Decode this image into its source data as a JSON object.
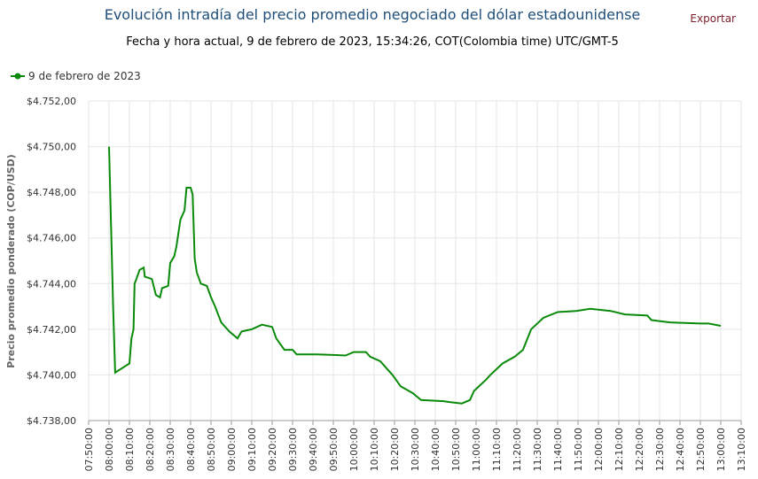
{
  "chart_data": {
    "type": "line",
    "title": "Evolución intradía del precio promedio negociado del dólar estadounidense",
    "subtitle": "Fecha y hora actual, 9 de febrero de 2023, 15:34:26, COT(Colombia time) UTC/GMT-5",
    "export_label": "Exportar",
    "y_label": "Precio promedio ponderado (COP/USD)",
    "ylim": [
      4738,
      4752
    ],
    "yticks": [
      {
        "value": 4738,
        "label": "$4.738,00"
      },
      {
        "value": 4740,
        "label": "$4.740,00"
      },
      {
        "value": 4742,
        "label": "$4.742,00"
      },
      {
        "value": 4744,
        "label": "$4.744,00"
      },
      {
        "value": 4746,
        "label": "$4.746,00"
      },
      {
        "value": 4748,
        "label": "$4.748,00"
      },
      {
        "value": 4750,
        "label": "$4.750,00"
      },
      {
        "value": 4752,
        "label": "$4.752,00"
      }
    ],
    "xlim": [
      "07:50:00",
      "13:10:00"
    ],
    "xticks": [
      "07:50:00",
      "08:00:00",
      "08:10:00",
      "08:20:00",
      "08:30:00",
      "08:40:00",
      "08:50:00",
      "09:00:00",
      "09:10:00",
      "09:20:00",
      "09:30:00",
      "09:40:00",
      "09:50:00",
      "10:00:00",
      "10:10:00",
      "10:20:00",
      "10:30:00",
      "10:40:00",
      "10:50:00",
      "11:00:00",
      "11:10:00",
      "11:20:00",
      "11:30:00",
      "11:40:00",
      "11:50:00",
      "12:00:00",
      "12:10:00",
      "12:20:00",
      "12:30:00",
      "12:40:00",
      "12:50:00",
      "13:00:00",
      "13:10:00"
    ],
    "grid": true,
    "legend": "top-left",
    "x": [
      "08:00:00",
      "08:02:00",
      "08:03:00",
      "08:10:00",
      "08:11:00",
      "08:12:00",
      "08:12:30",
      "08:13:00",
      "08:15:00",
      "08:17:00",
      "08:17:30",
      "08:21:00",
      "08:23:00",
      "08:25:00",
      "08:26:00",
      "08:29:00",
      "08:30:00",
      "08:32:00",
      "08:33:00",
      "08:35:00",
      "08:37:00",
      "08:38:00",
      "08:40:00",
      "08:41:00",
      "08:42:00",
      "08:43:00",
      "08:45:00",
      "08:48:00",
      "08:50:00",
      "08:52:00",
      "08:55:00",
      "08:59:00",
      "09:03:00",
      "09:05:00",
      "09:10:00",
      "09:15:00",
      "09:20:00",
      "09:22:00",
      "09:26:00",
      "09:30:00",
      "09:32:00",
      "09:42:00",
      "09:56:00",
      "10:00:00",
      "10:06:00",
      "10:08:00",
      "10:13:00",
      "10:17:00",
      "10:19:00",
      "10:23:00",
      "10:29:00",
      "10:33:00",
      "10:44:00",
      "10:48:00",
      "10:53:00",
      "10:57:00",
      "10:59:00",
      "11:05:00",
      "11:07:00",
      "11:13:00",
      "11:19:00",
      "11:23:00",
      "11:27:00",
      "11:33:00",
      "11:40:00",
      "11:49:00",
      "11:56:00",
      "12:06:00",
      "12:13:00",
      "12:24:00",
      "12:26:00",
      "12:35:00",
      "12:50:00",
      "12:54:00",
      "13:00:00"
    ],
    "series": [
      {
        "name": "9 de febrero de 2023",
        "color": "#0a8a0a",
        "values": [
          4750.0,
          4743.0,
          4740.1,
          4740.5,
          4741.6,
          4742.0,
          4744.0,
          4744.1,
          4744.6,
          4744.7,
          4744.3,
          4744.2,
          4743.5,
          4743.4,
          4743.8,
          4743.9,
          4744.9,
          4745.2,
          4745.6,
          4746.8,
          4747.2,
          4748.2,
          4748.2,
          4747.9,
          4745.1,
          4744.5,
          4744.0,
          4743.9,
          4743.4,
          4743.0,
          4742.3,
          4741.9,
          4741.6,
          4741.9,
          4742.0,
          4742.2,
          4742.1,
          4741.6,
          4741.1,
          4741.1,
          4740.9,
          4740.9,
          4740.85,
          4741.0,
          4741.0,
          4740.8,
          4740.6,
          4740.2,
          4740.0,
          4739.5,
          4739.2,
          4738.9,
          4738.85,
          4738.8,
          4738.75,
          4738.9,
          4739.3,
          4739.8,
          4740.0,
          4740.5,
          4740.8,
          4741.1,
          4742.0,
          4742.5,
          4742.75,
          4742.8,
          4742.9,
          4742.8,
          4742.65,
          4742.6,
          4742.4,
          4742.3,
          4742.25,
          4742.25,
          4742.15
        ]
      }
    ]
  }
}
